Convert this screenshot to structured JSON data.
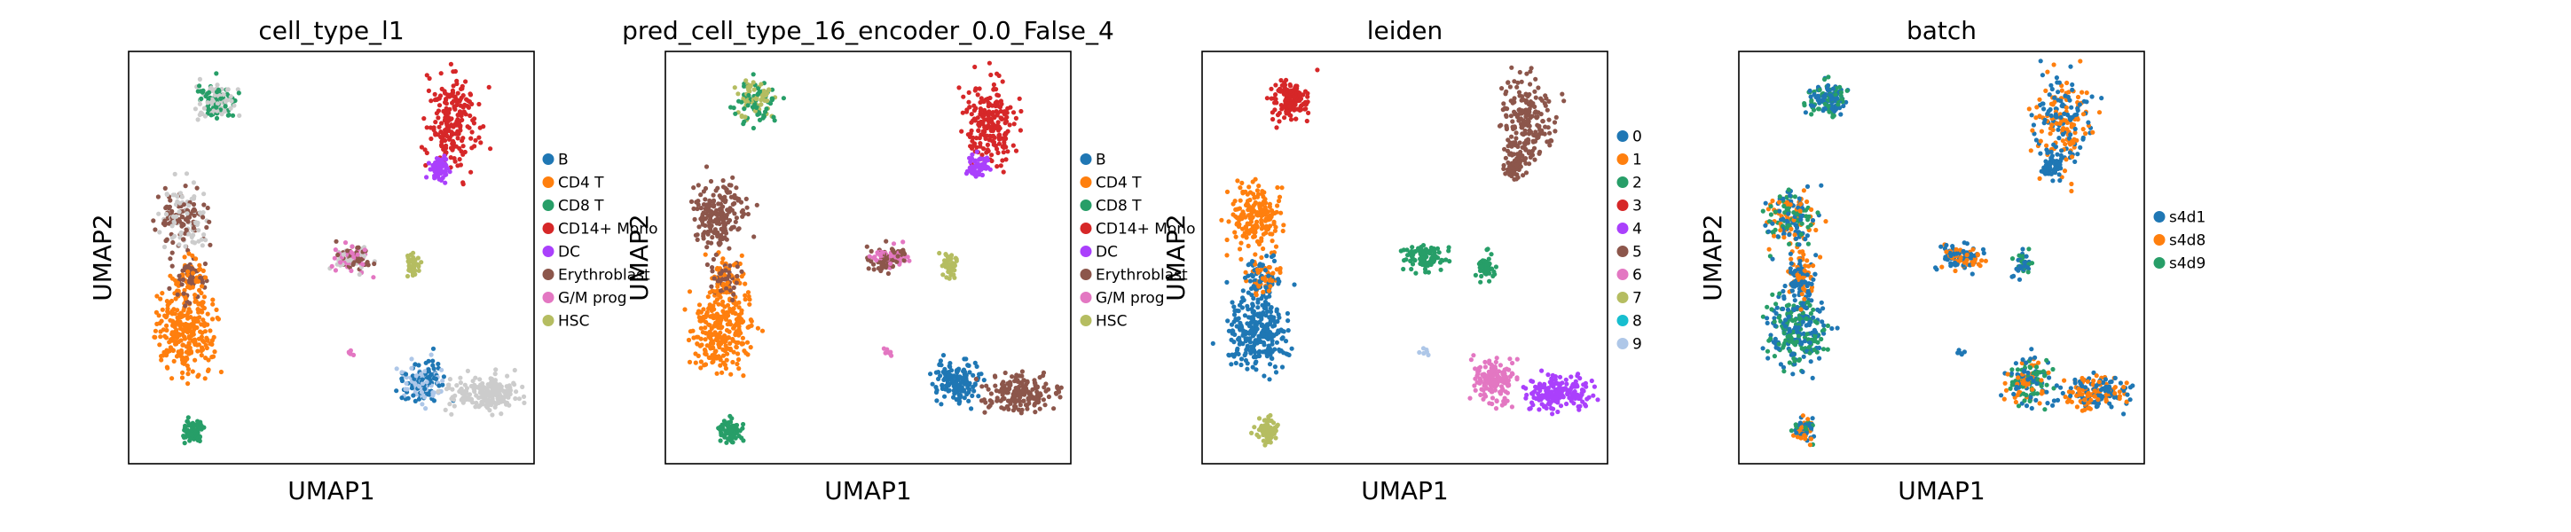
{
  "chart_data": [
    {
      "type": "scatter",
      "title": "cell_type_l1",
      "xlabel": "UMAP1",
      "ylabel": "UMAP2",
      "legend": "right",
      "series": [
        {
          "name": "B",
          "color": "#1f77b4"
        },
        {
          "name": "CD4 T",
          "color": "#ff7f0e"
        },
        {
          "name": "CD8 T",
          "color": "#279e68"
        },
        {
          "name": "CD14+ Mono",
          "color": "#d62728"
        },
        {
          "name": "DC",
          "color": "#aa40fc"
        },
        {
          "name": "Erythroblast",
          "color": "#8c564b"
        },
        {
          "name": "G/M prog",
          "color": "#e377c2"
        },
        {
          "name": "HSC",
          "color": "#b5bd61"
        }
      ]
    },
    {
      "type": "scatter",
      "title": "pred_cell_type_16_encoder_0.0_False_4",
      "xlabel": "UMAP1",
      "ylabel": "UMAP2",
      "legend": "right",
      "series": [
        {
          "name": "B",
          "color": "#1f77b4"
        },
        {
          "name": "CD4 T",
          "color": "#ff7f0e"
        },
        {
          "name": "CD8 T",
          "color": "#279e68"
        },
        {
          "name": "CD14+ Mono",
          "color": "#d62728"
        },
        {
          "name": "DC",
          "color": "#aa40fc"
        },
        {
          "name": "Erythroblast",
          "color": "#8c564b"
        },
        {
          "name": "G/M prog",
          "color": "#e377c2"
        },
        {
          "name": "HSC",
          "color": "#b5bd61"
        }
      ]
    },
    {
      "type": "scatter",
      "title": "leiden",
      "xlabel": "UMAP1",
      "ylabel": "UMAP2",
      "legend": "right",
      "series": [
        {
          "name": "0",
          "color": "#1f77b4"
        },
        {
          "name": "1",
          "color": "#ff7f0e"
        },
        {
          "name": "2",
          "color": "#279e68"
        },
        {
          "name": "3",
          "color": "#d62728"
        },
        {
          "name": "4",
          "color": "#aa40fc"
        },
        {
          "name": "5",
          "color": "#8c564b"
        },
        {
          "name": "6",
          "color": "#e377c2"
        },
        {
          "name": "7",
          "color": "#b5bd61"
        },
        {
          "name": "8",
          "color": "#17becf"
        },
        {
          "name": "9",
          "color": "#aec7e8"
        }
      ]
    },
    {
      "type": "scatter",
      "title": "batch",
      "xlabel": "UMAP1",
      "ylabel": "UMAP2",
      "legend": "right",
      "series": [
        {
          "name": "s4d1",
          "color": "#1f77b4"
        },
        {
          "name": "s4d8",
          "color": "#ff7f0e"
        },
        {
          "name": "s4d9",
          "color": "#279e68"
        }
      ]
    }
  ]
}
